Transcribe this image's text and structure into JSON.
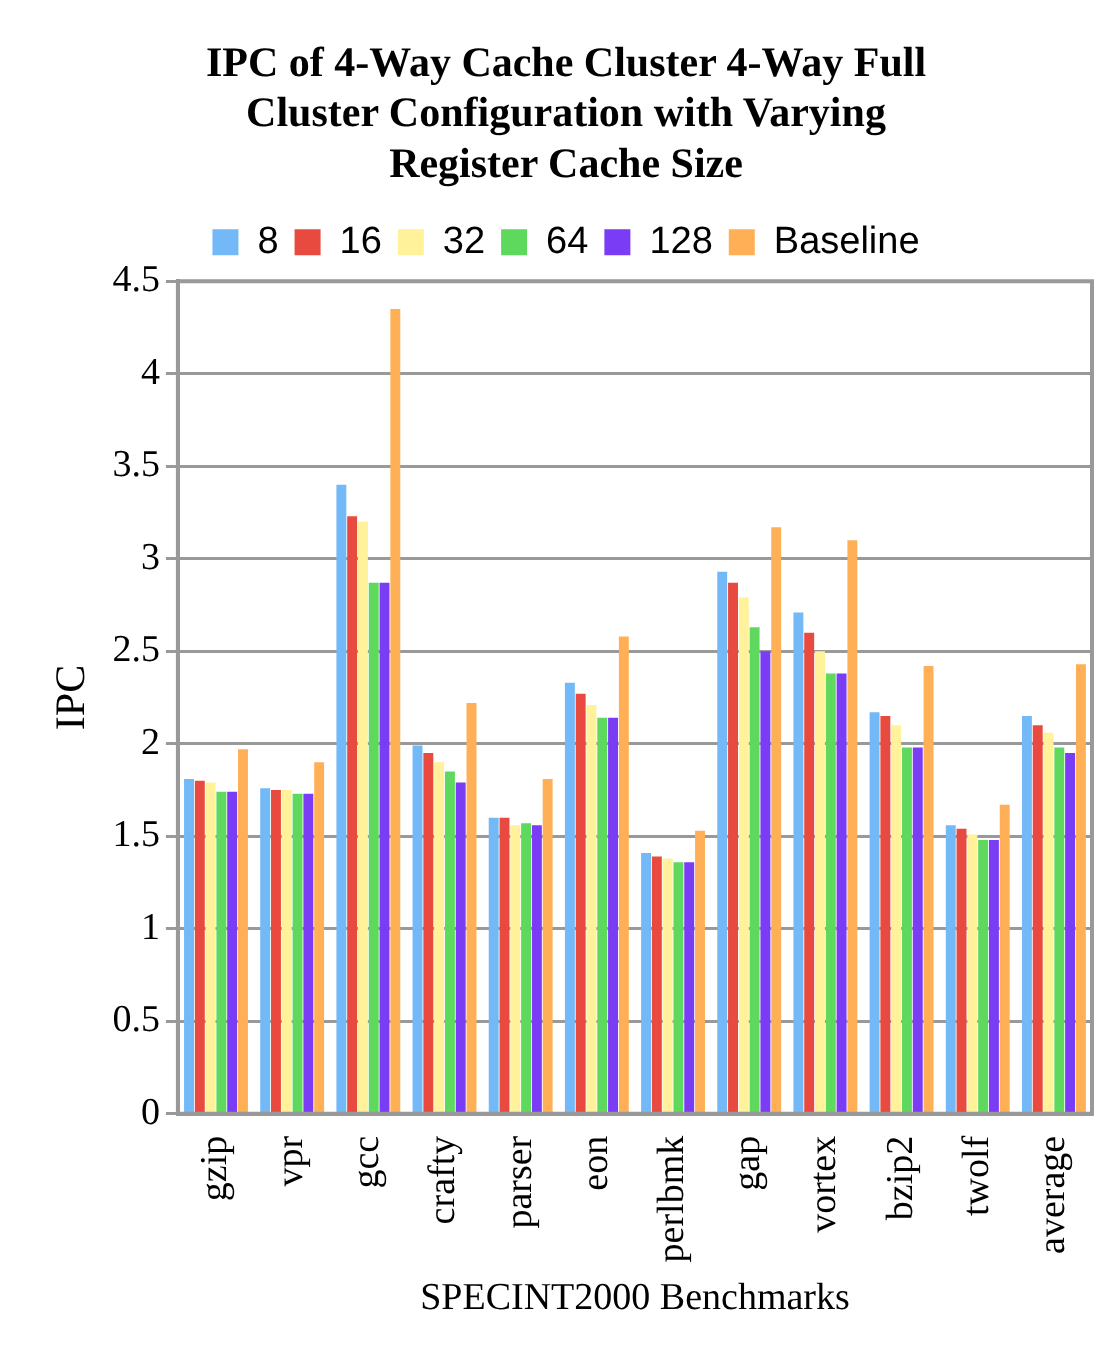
{
  "chart_data": {
    "type": "bar",
    "title": "IPC of 4-Way Cache Cluster 4-Way Full Cluster Configuration with Varying Register Cache Size",
    "xlabel": "SPECINT2000 Benchmarks",
    "ylabel": "IPC",
    "categories": [
      "gzip",
      "vpr",
      "gcc",
      "crafty",
      "parser",
      "eon",
      "perlbmk",
      "gap",
      "vortex",
      "bzip2",
      "twolf",
      "average"
    ],
    "series": [
      {
        "name": "8",
        "color": "#74b9f7",
        "values": [
          1.81,
          1.76,
          3.4,
          1.99,
          1.6,
          2.33,
          1.41,
          2.93,
          2.71,
          2.17,
          1.56,
          2.15
        ]
      },
      {
        "name": "16",
        "color": "#e84a3f",
        "values": [
          1.8,
          1.75,
          3.23,
          1.95,
          1.6,
          2.27,
          1.39,
          2.87,
          2.6,
          2.15,
          1.54,
          2.1
        ]
      },
      {
        "name": "32",
        "color": "#fff29a",
        "values": [
          1.79,
          1.75,
          3.2,
          1.9,
          1.56,
          2.21,
          1.38,
          2.79,
          2.5,
          2.1,
          1.51,
          2.06
        ]
      },
      {
        "name": "64",
        "color": "#5ed95e",
        "values": [
          1.74,
          1.73,
          2.87,
          1.85,
          1.57,
          2.14,
          1.36,
          2.63,
          2.38,
          1.98,
          1.48,
          1.98
        ]
      },
      {
        "name": "128",
        "color": "#7a3cf5",
        "values": [
          1.74,
          1.73,
          2.87,
          1.79,
          1.56,
          2.14,
          1.36,
          2.5,
          2.38,
          1.98,
          1.48,
          1.95
        ]
      },
      {
        "name": "Baseline",
        "color": "#ffb057",
        "values": [
          1.97,
          1.9,
          4.35,
          2.22,
          1.81,
          2.58,
          1.53,
          3.17,
          3.1,
          2.42,
          1.67,
          2.43
        ]
      }
    ],
    "ylim": [
      0,
      4.5
    ],
    "yticks": [
      0,
      0.5,
      1,
      1.5,
      2,
      2.5,
      3,
      3.5,
      4,
      4.5
    ],
    "grid": "y",
    "legend": "top"
  }
}
